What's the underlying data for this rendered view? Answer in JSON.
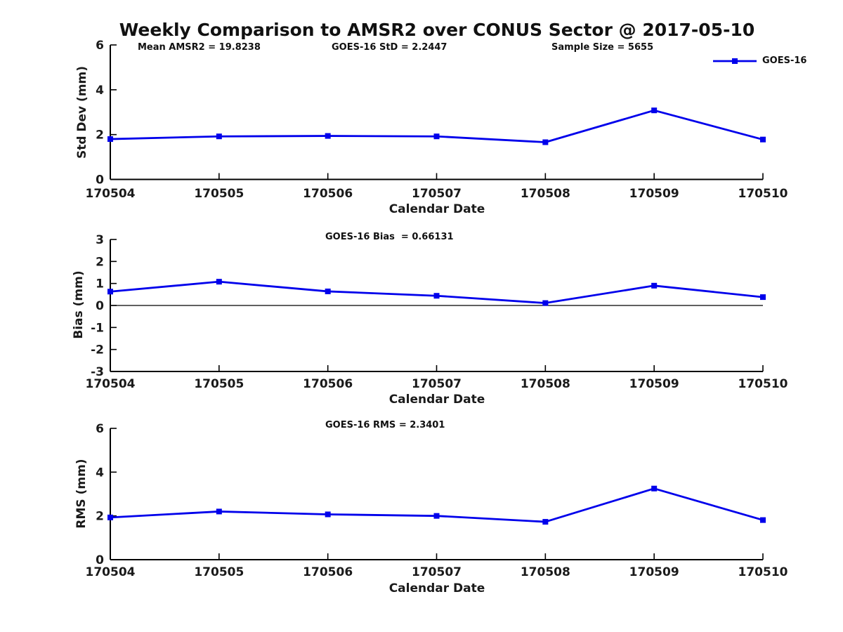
{
  "figure_title": "Weekly Comparison to AMSR2 over CONUS Sector @ 2017-05-10",
  "colors": {
    "line": "#0000EB",
    "axis": "#000000",
    "text": "#111111",
    "background": "#FFFFFF"
  },
  "legend": {
    "label": "GOES-16",
    "position": "top-right-outside"
  },
  "chart_data": [
    {
      "type": "line",
      "name": "std-dev-panel",
      "annotations": [
        "Mean AMSR2 = 19.8238",
        "GOES-16 StD = 2.2447",
        "Sample Size = 5655"
      ],
      "categories": [
        "170504",
        "170505",
        "170506",
        "170507",
        "170508",
        "170509",
        "170510"
      ],
      "series": [
        {
          "name": "GOES-16",
          "color": "#0000EB",
          "values": [
            1.8,
            1.92,
            1.94,
            1.92,
            1.66,
            3.08,
            1.78
          ]
        }
      ],
      "xlabel": "Calendar Date",
      "ylabel": "Std Dev (mm)",
      "ylim": [
        0,
        6
      ],
      "yticks": [
        0,
        2,
        4,
        6
      ],
      "zero_line": false,
      "grid": false,
      "legend_visible": true
    },
    {
      "type": "line",
      "name": "bias-panel",
      "annotations": [
        "GOES-16 Bias  = 0.66131"
      ],
      "categories": [
        "170504",
        "170505",
        "170506",
        "170507",
        "170508",
        "170509",
        "170510"
      ],
      "series": [
        {
          "name": "GOES-16",
          "color": "#0000EB",
          "values": [
            0.63,
            1.08,
            0.64,
            0.44,
            0.11,
            0.9,
            0.38
          ]
        }
      ],
      "xlabel": "Calendar Date",
      "ylabel": "Bias (mm)",
      "ylim": [
        -3,
        3
      ],
      "yticks": [
        3,
        2,
        1,
        0,
        -1,
        -2,
        -3
      ],
      "zero_line": true,
      "grid": false,
      "legend_visible": false
    },
    {
      "type": "line",
      "name": "rms-panel",
      "annotations": [
        "GOES-16 RMS = 2.3401"
      ],
      "categories": [
        "170504",
        "170505",
        "170506",
        "170507",
        "170508",
        "170509",
        "170510"
      ],
      "series": [
        {
          "name": "GOES-16",
          "color": "#0000EB",
          "values": [
            1.93,
            2.2,
            2.07,
            2.0,
            1.73,
            3.25,
            1.81
          ]
        }
      ],
      "xlabel": "Calendar Date",
      "ylabel": "RMS (mm)",
      "ylim": [
        0,
        6
      ],
      "yticks": [
        0,
        2,
        4,
        6
      ],
      "zero_line": false,
      "grid": false,
      "legend_visible": false
    }
  ]
}
